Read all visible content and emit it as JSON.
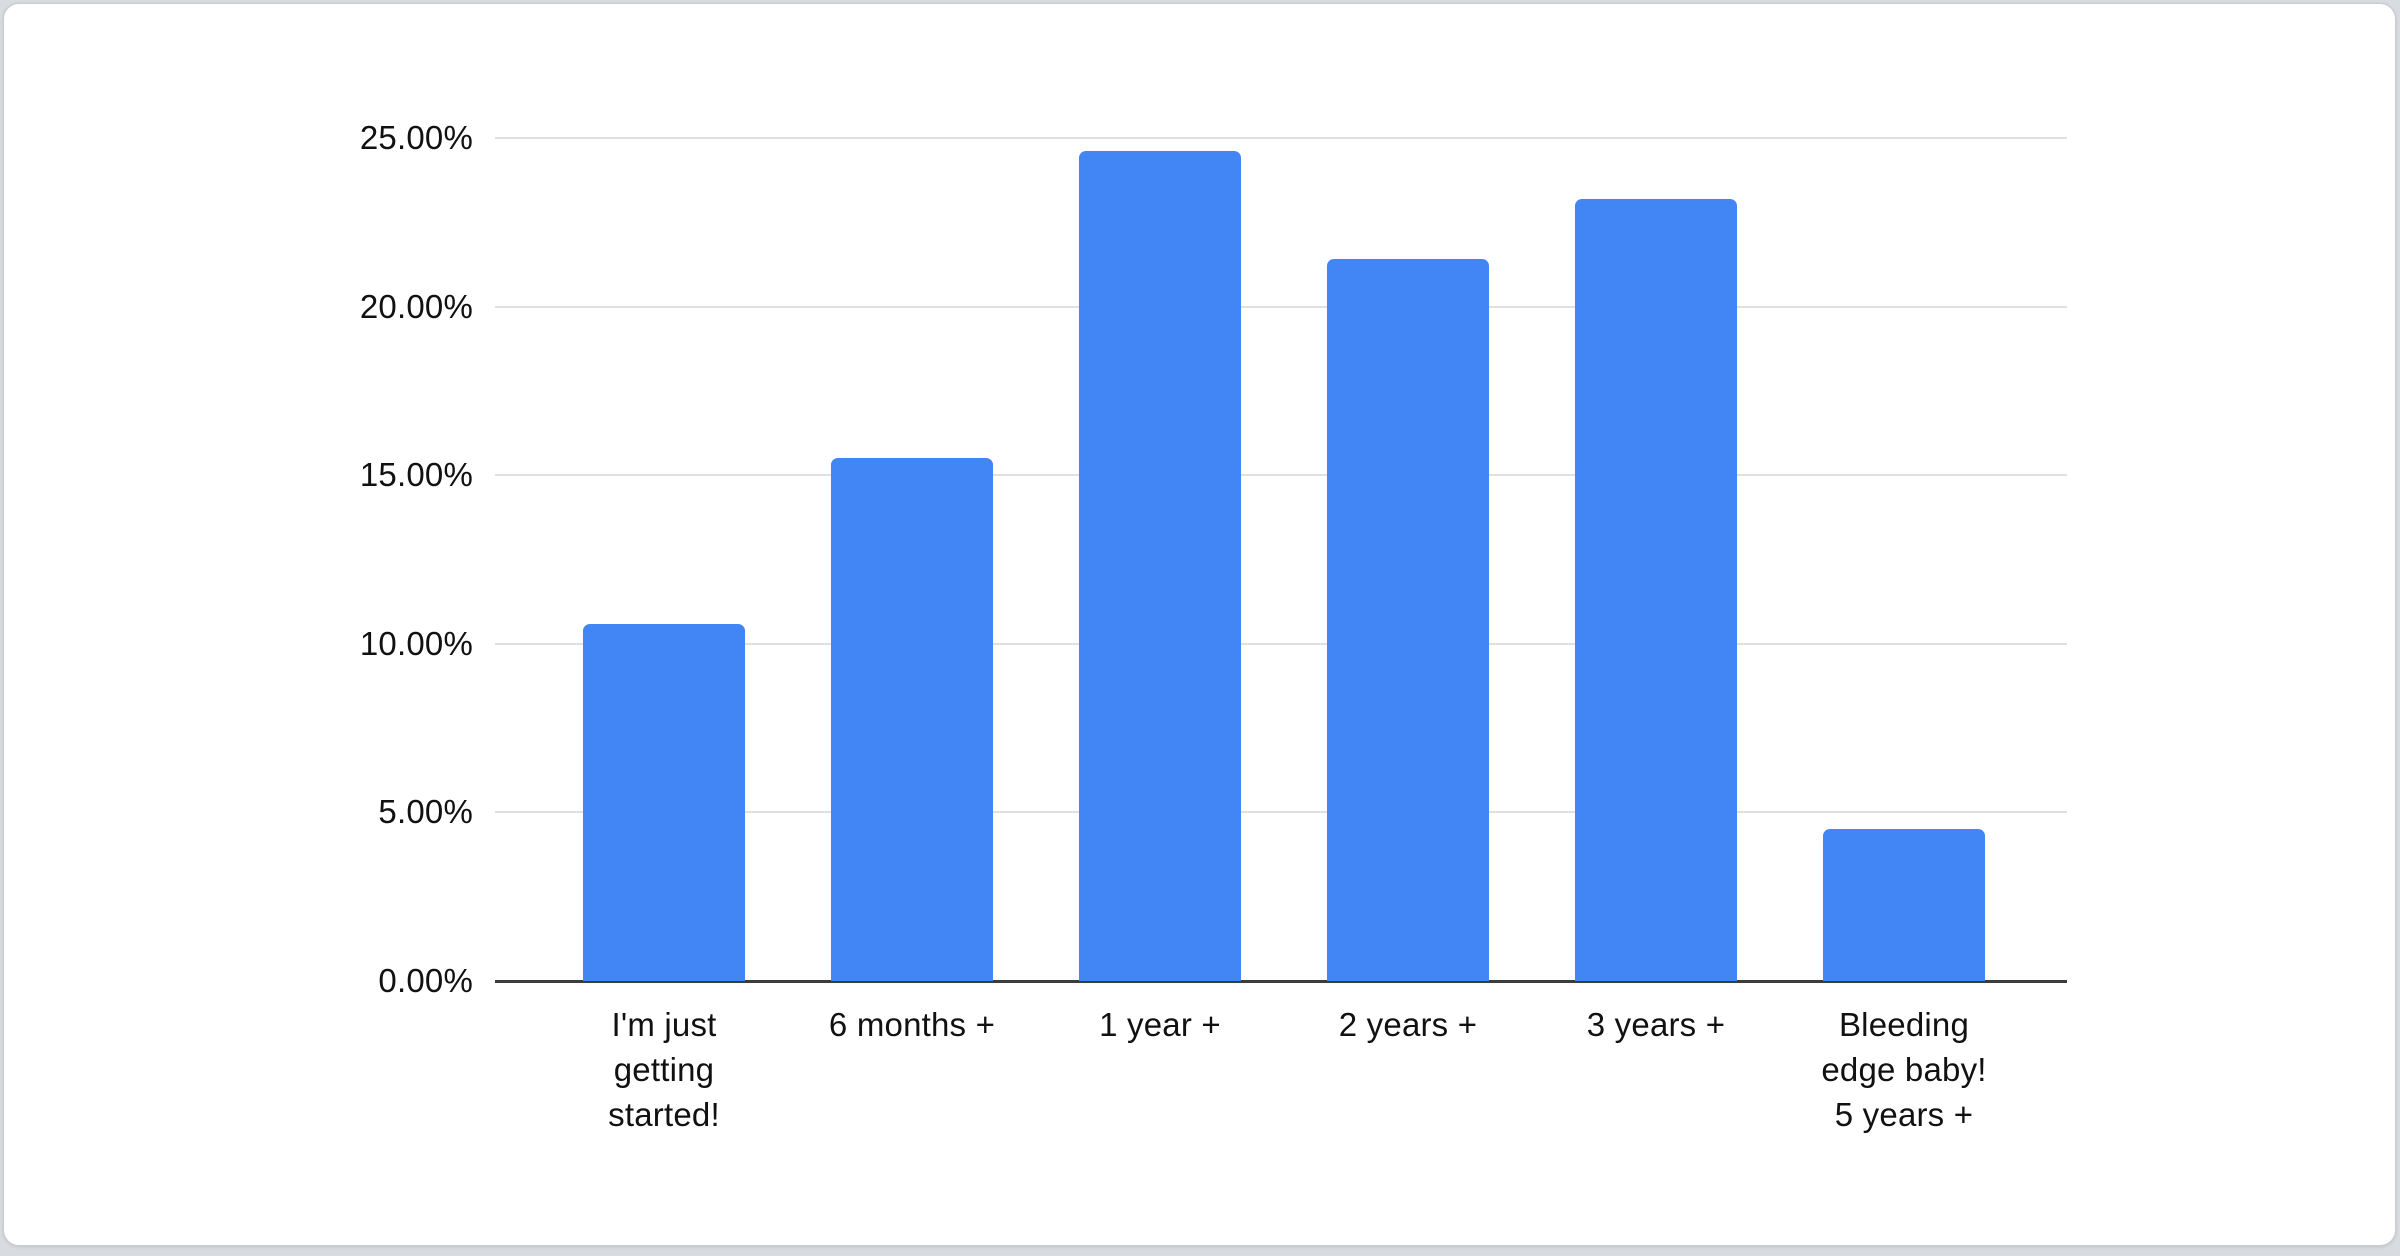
{
  "chart_data": {
    "type": "bar",
    "categories": [
      "I'm just getting started!",
      "6 months +",
      "1 year +",
      "2 years +",
      "3 years +",
      "Bleeding edge baby! 5 years +"
    ],
    "x_tick_labels": [
      "I'm just\ngetting\nstarted!",
      "6 months +",
      "1 year +",
      "2 years +",
      "3 years +",
      "Bleeding\nedge baby!\n5 years +"
    ],
    "values": [
      10.6,
      15.5,
      24.6,
      21.4,
      23.2,
      4.5
    ],
    "unit": "%",
    "y_ticks": [
      "25.00%",
      "20.00%",
      "15.00%",
      "10.00%",
      "5.00%",
      "0.00%"
    ],
    "ylim": [
      0,
      25
    ],
    "y_tick_step": 5,
    "grid": true,
    "legend_position": "none",
    "bar_color": "#4285f4"
  },
  "colors": {
    "page_background": "#d8dbdf",
    "card_background": "#ffffff",
    "card_border": "#c9ccce",
    "gridline": "#e0e0e0",
    "axis_line": "#3c3c3c",
    "text": "#111111",
    "bar": "#4285f4"
  }
}
